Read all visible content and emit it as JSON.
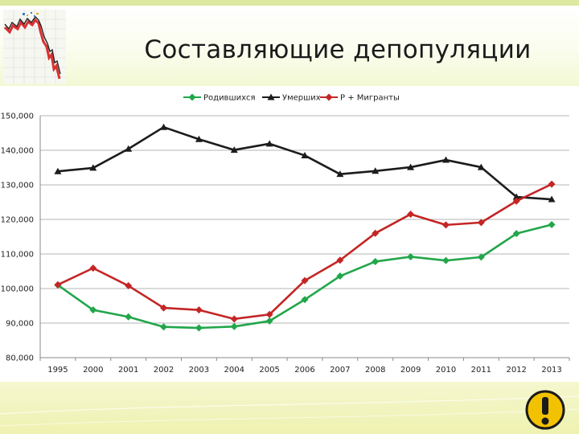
{
  "slide": {
    "title": "Составляющие депопуляции"
  },
  "chart_data": {
    "type": "line",
    "title": "",
    "xlabel": "",
    "ylabel": "",
    "categories": [
      "1995",
      "2000",
      "2001",
      "2002",
      "2003",
      "2004",
      "2005",
      "2006",
      "2007",
      "2008",
      "2009",
      "2010",
      "2011",
      "2012",
      "2013"
    ],
    "ylim": [
      80000,
      150000
    ],
    "yticks": [
      80000,
      90000,
      100000,
      110000,
      120000,
      130000,
      140000,
      150000
    ],
    "ytick_labels": [
      "80,000",
      "90,000",
      "100,000",
      "110,000",
      "120,000",
      "130,000",
      "140,000",
      "150,000"
    ],
    "grid": "horizontal",
    "legend_position": "top",
    "series": [
      {
        "name": "Родившихся",
        "color": "#22a64a",
        "marker": "diamond",
        "values": [
          101000,
          93800,
          91800,
          88900,
          88600,
          89000,
          90600,
          96800,
          103600,
          107800,
          109200,
          108100,
          109100,
          115900,
          118500
        ]
      },
      {
        "name": "Умерших",
        "color": "#1c1c1c",
        "marker": "triangle",
        "values": [
          133900,
          134900,
          140400,
          146700,
          143200,
          140100,
          141900,
          138500,
          133100,
          134000,
          135100,
          137200,
          135100,
          126500,
          125800
        ]
      },
      {
        "name": "Р + Мигранты",
        "color": "#c42525",
        "marker": "diamond",
        "values": [
          101100,
          105900,
          100800,
          94400,
          93800,
          91200,
          92500,
          102300,
          108200,
          116000,
          121500,
          118400,
          119100,
          125300,
          130200
        ]
      }
    ]
  },
  "icons": {
    "logo": "falling-graph-icon",
    "warning": "exclamation-icon"
  }
}
